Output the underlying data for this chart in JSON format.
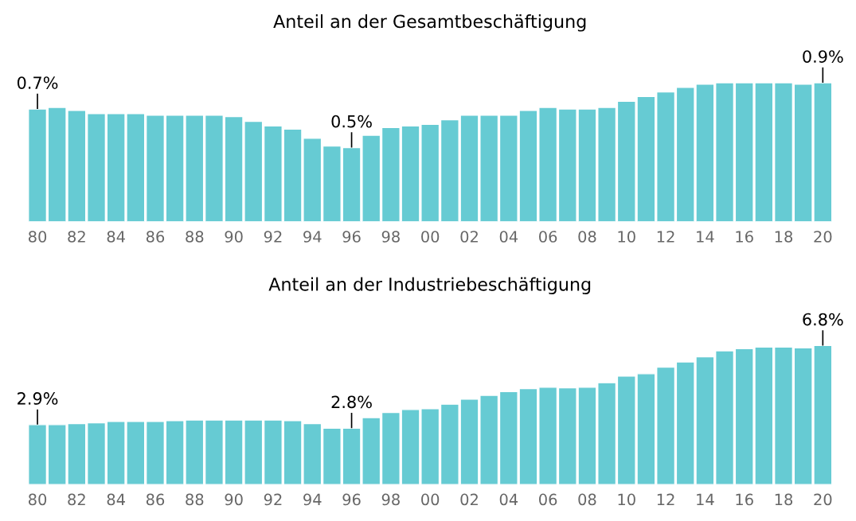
{
  "chart_data": [
    {
      "type": "bar",
      "title": "Anteil an der Gesamtbeschäftigung",
      "categories": [
        "80",
        null,
        "82",
        null,
        "84",
        null,
        "86",
        null,
        "88",
        null,
        "90",
        null,
        "92",
        null,
        "94",
        null,
        "96",
        null,
        "98",
        null,
        "00",
        null,
        "02",
        null,
        "04",
        null,
        "06",
        null,
        "08",
        null,
        "10",
        null,
        "12",
        null,
        "14",
        null,
        "16",
        null,
        "18",
        null,
        "20"
      ],
      "series": [
        {
          "color": "#66cbd3",
          "values": [
            0.73,
            0.74,
            0.72,
            0.7,
            0.7,
            0.7,
            0.69,
            0.69,
            0.69,
            0.69,
            0.68,
            0.65,
            0.62,
            0.6,
            0.54,
            0.49,
            0.48,
            0.56,
            0.61,
            0.62,
            0.63,
            0.66,
            0.69,
            0.69,
            0.69,
            0.72,
            0.74,
            0.73,
            0.73,
            0.74,
            0.78,
            0.81,
            0.84,
            0.87,
            0.89,
            0.9,
            0.9,
            0.9,
            0.9,
            0.89,
            0.9
          ],
          "value_labels": [
            "0.7%",
            null,
            null,
            null,
            null,
            null,
            null,
            null,
            null,
            null,
            null,
            null,
            null,
            null,
            null,
            null,
            "0.5%",
            null,
            null,
            null,
            null,
            null,
            null,
            null,
            null,
            null,
            null,
            null,
            null,
            null,
            null,
            null,
            null,
            null,
            null,
            null,
            null,
            null,
            null,
            null,
            "0.9%"
          ]
        }
      ]
    },
    {
      "type": "bar",
      "title": "Anteil an der Industriebeschäftigung",
      "categories": [
        "80",
        null,
        "82",
        null,
        "84",
        null,
        "86",
        null,
        "88",
        null,
        "90",
        null,
        "92",
        null,
        "94",
        null,
        "96",
        null,
        "98",
        null,
        "00",
        null,
        "02",
        null,
        "04",
        null,
        "06",
        null,
        "08",
        null,
        "10",
        null,
        "12",
        null,
        "14",
        null,
        "16",
        null,
        "18",
        null,
        "20"
      ],
      "series": [
        {
          "color": "#66cbd3",
          "values": [
            2.93,
            2.93,
            2.98,
            3.02,
            3.09,
            3.09,
            3.09,
            3.13,
            3.16,
            3.16,
            3.16,
            3.16,
            3.16,
            3.13,
            2.98,
            2.76,
            2.76,
            3.27,
            3.53,
            3.67,
            3.71,
            3.93,
            4.18,
            4.36,
            4.55,
            4.69,
            4.76,
            4.73,
            4.76,
            4.98,
            5.31,
            5.42,
            5.74,
            6.0,
            6.25,
            6.54,
            6.65,
            6.73,
            6.73,
            6.69,
            6.8
          ],
          "value_labels": [
            "2.9%",
            null,
            null,
            null,
            null,
            null,
            null,
            null,
            null,
            null,
            null,
            null,
            null,
            null,
            null,
            null,
            "2.8%",
            null,
            null,
            null,
            null,
            null,
            null,
            null,
            null,
            null,
            null,
            null,
            null,
            null,
            null,
            null,
            null,
            null,
            null,
            null,
            null,
            null,
            null,
            null,
            "6.8%"
          ]
        }
      ]
    }
  ]
}
